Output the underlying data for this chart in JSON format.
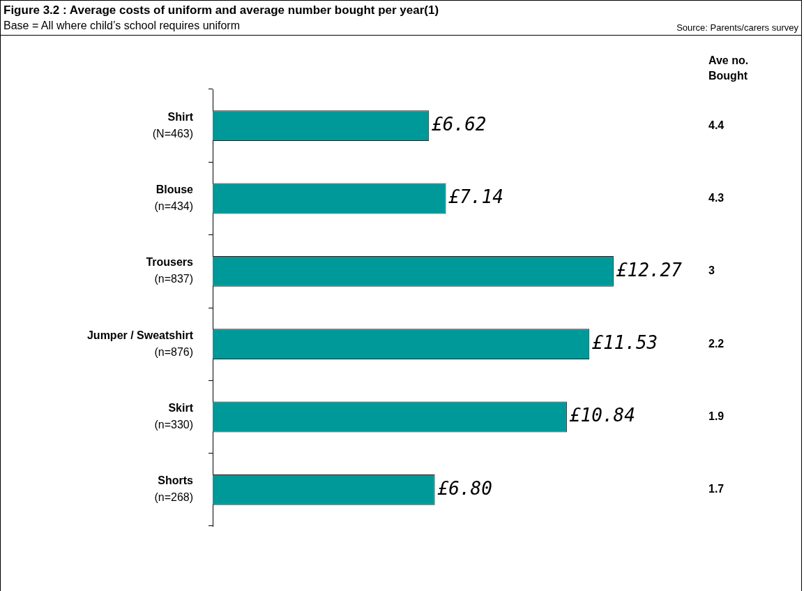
{
  "chart_data": {
    "type": "bar",
    "orientation": "horizontal",
    "title": "Figure 3.2 : Average costs of uniform and average number bought per year(1)",
    "subtitle": "Base = All where child’s school requires uniform",
    "categories": [
      "Shirt\n(N=463)",
      "Blouse\n(n=434)",
      "Trousers\n(n=837)",
      "Jumper / Sweatshirt\n(n=876)",
      "Skirt\n(n=330)",
      "Shorts\n(n=268)"
    ],
    "values": [
      6.62,
      7.14,
      12.27,
      11.53,
      10.84,
      6.8
    ],
    "value_labels": [
      "£6.62",
      "£7.14",
      "£12.27",
      "£11.53",
      "£10.84",
      "£6.80"
    ],
    "color": "#009999",
    "annotations": [
      "Source: Parents/carers survey",
      "Ave no.\nBought",
      "4.4",
      "4.3",
      "3",
      "2.2",
      "1.9",
      "1.7"
    ],
    "grid": false,
    "legend": false
  }
}
